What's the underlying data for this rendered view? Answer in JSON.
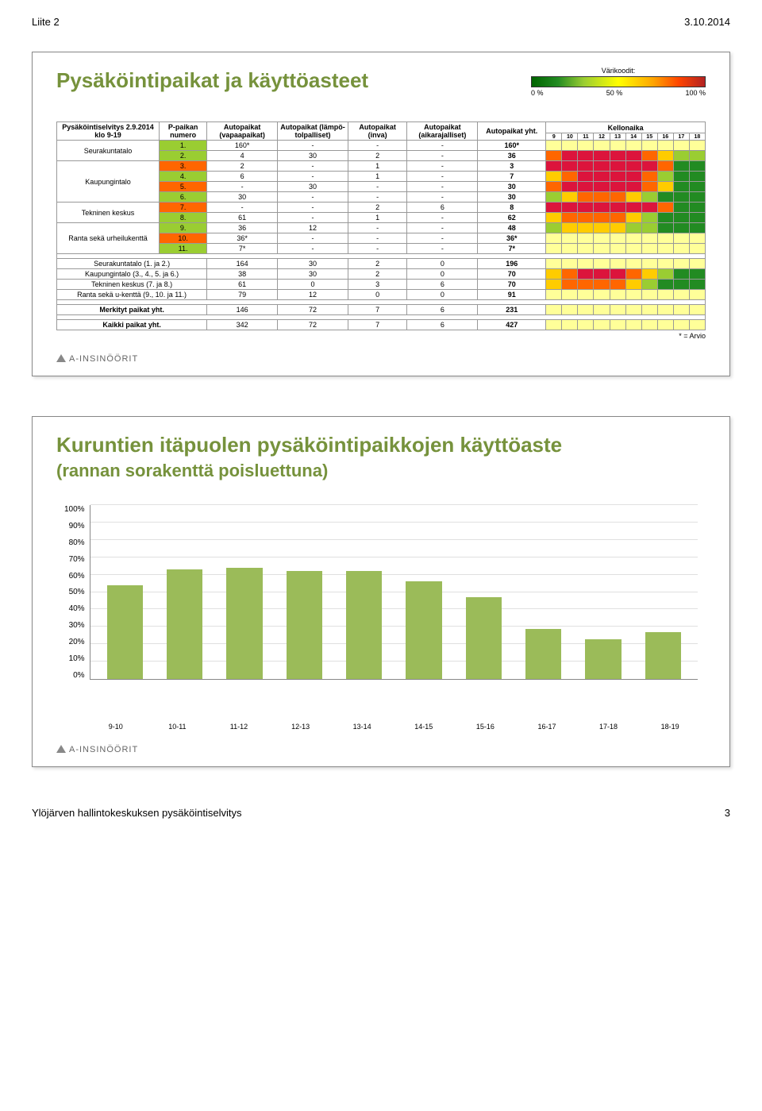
{
  "header": {
    "left": "Liite 2",
    "right": "3.10.2014"
  },
  "footer": {
    "left": "Ylöjärven hallintokeskuksen pysäköintiselvitys",
    "page": "3"
  },
  "logo_text": "A-INSINÖÖRIT",
  "slide1": {
    "title": "Pysäköintipaikat ja käyttöasteet",
    "legend": {
      "label": "Värikoodit:",
      "ticks": [
        "0 %",
        "50 %",
        "100 %"
      ]
    },
    "cols": {
      "c1": "Pysäköintiselvitys 2.9.2014 klo 9-19",
      "c2": "P-paikan numero",
      "c3": "Autopaikat (vapaapaikat)",
      "c4": "Autopaikat (lämpö-tolpalliset)",
      "c5": "Autopaikat (inva)",
      "c6": "Autopaikat (aikarajalliset)",
      "c7": "Autopaikat yht.",
      "kello": "Kellonaika"
    },
    "hours": [
      "9",
      "10",
      "11",
      "12",
      "13",
      "14",
      "15",
      "16",
      "17",
      "18"
    ],
    "groups": [
      {
        "name": "Seurakuntatalo",
        "rows": [
          {
            "num": "1.",
            "vapaa": "160*",
            "lampo": "-",
            "inva": "-",
            "aika": "-",
            "yht": "160*",
            "pcolor": "#9acd32",
            "heat": [
              "#ffff99",
              "#ffff99",
              "#ffff99",
              "#ffff99",
              "#ffff99",
              "#ffff99",
              "#ffff99",
              "#ffff99",
              "#ffff99",
              "#ffff99"
            ]
          },
          {
            "num": "2.",
            "vapaa": "4",
            "lampo": "30",
            "inva": "2",
            "aika": "-",
            "yht": "36",
            "pcolor": "#9acd32",
            "heat": [
              "#ff6600",
              "#dc143c",
              "#dc143c",
              "#dc143c",
              "#dc143c",
              "#dc143c",
              "#ff6600",
              "#ffcc00",
              "#9acd32",
              "#9acd32"
            ]
          }
        ]
      },
      {
        "name": "Kaupungintalo",
        "rows": [
          {
            "num": "3.",
            "vapaa": "2",
            "lampo": "-",
            "inva": "1",
            "aika": "-",
            "yht": "3",
            "pcolor": "#ff6600",
            "heat": [
              "#dc143c",
              "#dc143c",
              "#dc143c",
              "#dc143c",
              "#dc143c",
              "#dc143c",
              "#dc143c",
              "#ff6600",
              "#228b22",
              "#228b22"
            ]
          },
          {
            "num": "4.",
            "vapaa": "6",
            "lampo": "-",
            "inva": "1",
            "aika": "-",
            "yht": "7",
            "pcolor": "#9acd32",
            "heat": [
              "#ffcc00",
              "#ff6600",
              "#dc143c",
              "#dc143c",
              "#dc143c",
              "#dc143c",
              "#ff6600",
              "#9acd32",
              "#228b22",
              "#228b22"
            ]
          },
          {
            "num": "5.",
            "vapaa": "-",
            "lampo": "30",
            "inva": "-",
            "aika": "-",
            "yht": "30",
            "pcolor": "#ff6600",
            "heat": [
              "#ff6600",
              "#dc143c",
              "#dc143c",
              "#dc143c",
              "#dc143c",
              "#dc143c",
              "#ff6600",
              "#ffcc00",
              "#228b22",
              "#228b22"
            ]
          },
          {
            "num": "6.",
            "vapaa": "30",
            "lampo": "-",
            "inva": "-",
            "aika": "-",
            "yht": "30",
            "pcolor": "#9acd32",
            "heat": [
              "#9acd32",
              "#ffcc00",
              "#ff6600",
              "#ff6600",
              "#ff6600",
              "#ffcc00",
              "#9acd32",
              "#228b22",
              "#228b22",
              "#228b22"
            ]
          }
        ]
      },
      {
        "name": "Tekninen keskus",
        "rows": [
          {
            "num": "7.",
            "vapaa": "-",
            "lampo": "-",
            "inva": "2",
            "aika": "6",
            "yht": "8",
            "pcolor": "#ff6600",
            "heat": [
              "#dc143c",
              "#dc143c",
              "#dc143c",
              "#dc143c",
              "#dc143c",
              "#dc143c",
              "#dc143c",
              "#ff6600",
              "#228b22",
              "#228b22"
            ]
          },
          {
            "num": "8.",
            "vapaa": "61",
            "lampo": "-",
            "inva": "1",
            "aika": "-",
            "yht": "62",
            "pcolor": "#9acd32",
            "heat": [
              "#ffcc00",
              "#ff6600",
              "#ff6600",
              "#ff6600",
              "#ff6600",
              "#ffcc00",
              "#9acd32",
              "#228b22",
              "#228b22",
              "#228b22"
            ]
          }
        ]
      },
      {
        "name": "Ranta sekä urheilukenttä",
        "rows": [
          {
            "num": "9.",
            "vapaa": "36",
            "lampo": "12",
            "inva": "-",
            "aika": "-",
            "yht": "48",
            "pcolor": "#9acd32",
            "heat": [
              "#9acd32",
              "#ffcc00",
              "#ffcc00",
              "#ffcc00",
              "#ffcc00",
              "#9acd32",
              "#9acd32",
              "#228b22",
              "#228b22",
              "#228b22"
            ]
          },
          {
            "num": "10.",
            "vapaa": "36*",
            "lampo": "-",
            "inva": "-",
            "aika": "-",
            "yht": "36*",
            "pcolor": "#ff6600",
            "heat": [
              "#ffff99",
              "#ffff99",
              "#ffff99",
              "#ffff99",
              "#ffff99",
              "#ffff99",
              "#ffff99",
              "#ffff99",
              "#ffff99",
              "#ffff99"
            ]
          },
          {
            "num": "11.",
            "vapaa": "7*",
            "lampo": "-",
            "inva": "-",
            "aika": "-",
            "yht": "7*",
            "pcolor": "#9acd32",
            "heat": [
              "#ffff99",
              "#ffff99",
              "#ffff99",
              "#ffff99",
              "#ffff99",
              "#ffff99",
              "#ffff99",
              "#ffff99",
              "#ffff99",
              "#ffff99"
            ]
          }
        ]
      }
    ],
    "footnote": "* = Arvio",
    "summaries": [
      {
        "label": "Seurakuntatalo (1. ja 2.)",
        "vapaa": "164",
        "lampo": "30",
        "inva": "2",
        "aika": "0",
        "yht": "196",
        "heat": [
          "#ffff99",
          "#ffff99",
          "#ffff99",
          "#ffff99",
          "#ffff99",
          "#ffff99",
          "#ffff99",
          "#ffff99",
          "#ffff99",
          "#ffff99"
        ]
      },
      {
        "label": "Kaupungintalo (3., 4., 5. ja 6.)",
        "vapaa": "38",
        "lampo": "30",
        "inva": "2",
        "aika": "0",
        "yht": "70",
        "heat": [
          "#ffcc00",
          "#ff6600",
          "#dc143c",
          "#dc143c",
          "#dc143c",
          "#ff6600",
          "#ffcc00",
          "#9acd32",
          "#228b22",
          "#228b22"
        ]
      },
      {
        "label": "Tekninen keskus (7. ja 8.)",
        "vapaa": "61",
        "lampo": "0",
        "inva": "3",
        "aika": "6",
        "yht": "70",
        "heat": [
          "#ffcc00",
          "#ff6600",
          "#ff6600",
          "#ff6600",
          "#ff6600",
          "#ffcc00",
          "#9acd32",
          "#228b22",
          "#228b22",
          "#228b22"
        ]
      },
      {
        "label": "Ranta sekä u-kenttä (9., 10. ja 11.)",
        "vapaa": "79",
        "lampo": "12",
        "inva": "0",
        "aika": "0",
        "yht": "91",
        "heat": [
          "#ffff99",
          "#ffff99",
          "#ffff99",
          "#ffff99",
          "#ffff99",
          "#ffff99",
          "#ffff99",
          "#ffff99",
          "#ffff99",
          "#ffff99"
        ]
      }
    ],
    "totals": [
      {
        "label": "Merkityt paikat yht.",
        "vapaa": "146",
        "lampo": "72",
        "inva": "7",
        "aika": "6",
        "yht": "231",
        "heat": [
          "#ffff99",
          "#ffff99",
          "#ffff99",
          "#ffff99",
          "#ffff99",
          "#ffff99",
          "#ffff99",
          "#ffff99",
          "#ffff99",
          "#ffff99"
        ]
      },
      {
        "label": "Kaikki paikat yht.",
        "vapaa": "342",
        "lampo": "72",
        "inva": "7",
        "aika": "6",
        "yht": "427",
        "heat": [
          "#ffff99",
          "#ffff99",
          "#ffff99",
          "#ffff99",
          "#ffff99",
          "#ffff99",
          "#ffff99",
          "#ffff99",
          "#ffff99",
          "#ffff99"
        ]
      }
    ]
  },
  "slide2": {
    "title1": "Kuruntien itäpuolen pysäköintipaikkojen käyttöaste",
    "title2": "(rannan sorakenttä poisluettuna)",
    "chart": {
      "type": "bar",
      "y_max": 100,
      "y_step": 10,
      "y_ticks": [
        "100%",
        "90%",
        "80%",
        "70%",
        "60%",
        "50%",
        "40%",
        "30%",
        "20%",
        "10%",
        "0%"
      ],
      "x_labels": [
        "9-10",
        "10-11",
        "11-12",
        "12-13",
        "13-14",
        "14-15",
        "15-16",
        "16-17",
        "17-18",
        "18-19"
      ],
      "values": [
        54,
        63,
        64,
        62,
        62,
        56,
        47,
        29,
        23,
        27
      ],
      "bar_color": "#9bbb59",
      "grid_color": "#e0e0e0"
    }
  }
}
